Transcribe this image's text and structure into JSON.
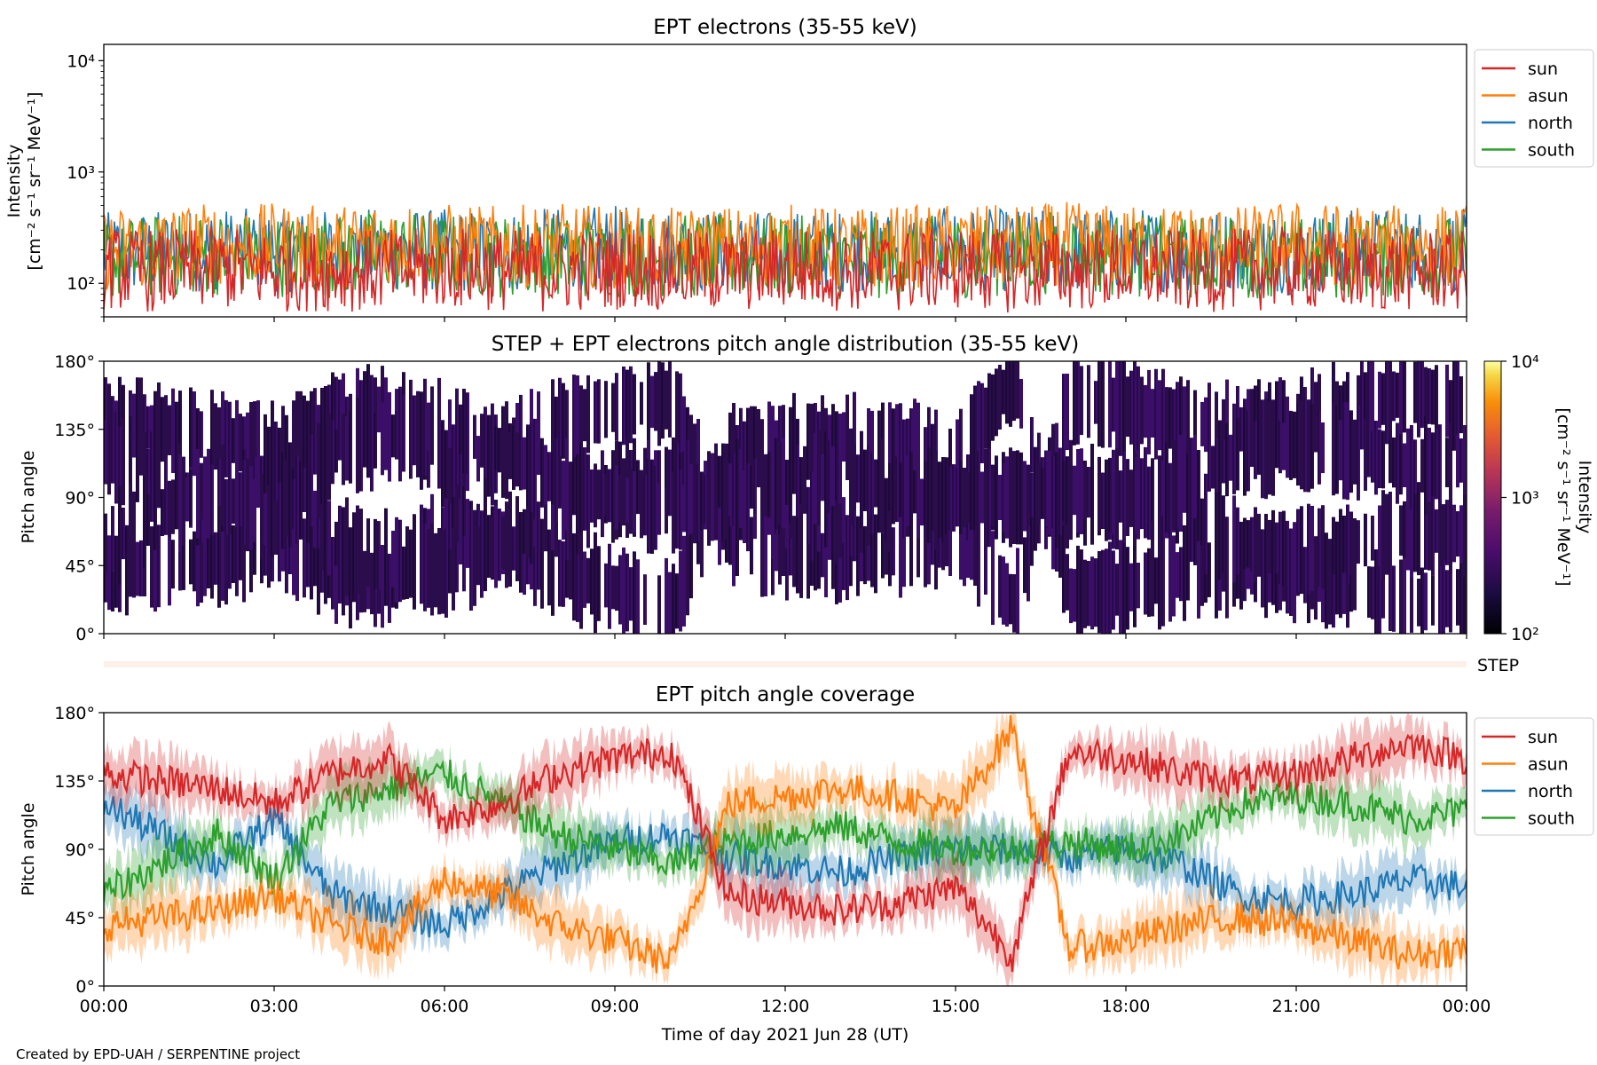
{
  "figure": {
    "credit": "Created by EPD-UAH / SERPENTINE project",
    "xlabel": "Time of day 2021 Jun 28 (UT)",
    "x_ticks": [
      "00:00",
      "03:00",
      "06:00",
      "09:00",
      "12:00",
      "15:00",
      "18:00",
      "21:00",
      "00:00"
    ]
  },
  "colors": {
    "sun": "#d62728",
    "asun": "#ff7f0e",
    "north": "#1f77b4",
    "south": "#2ca02c"
  },
  "chart_data": [
    {
      "type": "line",
      "title": "EPT electrons (35-55 keV)",
      "ylabel": "Intensity",
      "yunit": "[cm⁻² s⁻¹ sr⁻¹ MeV⁻¹]",
      "yscale": "log",
      "ylim": [
        50,
        14000
      ],
      "y_ticks": [
        "10²",
        "10³",
        "10⁴"
      ],
      "x_hours_range": [
        0,
        24
      ],
      "legend_location": "upper-right outside",
      "series": [
        {
          "name": "sun",
          "x_hours": [
            0,
            1,
            2,
            3,
            4,
            5,
            6,
            7,
            8,
            9,
            10,
            11,
            12,
            13,
            14,
            15,
            16,
            17,
            18,
            19,
            20,
            21,
            22,
            23,
            24
          ],
          "values": [
            150,
            140,
            150,
            140,
            145,
            140,
            150,
            145,
            140,
            150,
            145,
            140,
            150,
            145,
            140,
            150,
            140,
            145,
            150,
            140,
            145,
            150,
            140,
            145,
            140
          ]
        },
        {
          "name": "asun",
          "x_hours": [
            0,
            1,
            2,
            3,
            4,
            5,
            6,
            7,
            8,
            9,
            10,
            11,
            12,
            13,
            14,
            15,
            16,
            17,
            18,
            19,
            20,
            21,
            22,
            23,
            24
          ],
          "values": [
            220,
            230,
            250,
            240,
            230,
            260,
            240,
            230,
            240,
            230,
            220,
            230,
            240,
            220,
            230,
            240,
            230,
            250,
            230,
            240,
            230,
            250,
            240,
            230,
            240
          ]
        },
        {
          "name": "north",
          "x_hours": [
            0,
            1,
            2,
            3,
            4,
            5,
            6,
            7,
            8,
            9,
            10,
            11,
            12,
            13,
            14,
            15,
            16,
            17,
            18,
            19,
            20,
            21,
            22,
            23,
            24
          ],
          "values": [
            200,
            210,
            220,
            215,
            210,
            220,
            215,
            210,
            220,
            230,
            215,
            210,
            205,
            215,
            210,
            220,
            215,
            210,
            220,
            215,
            210,
            205,
            215,
            220,
            215
          ]
        },
        {
          "name": "south",
          "x_hours": [
            0,
            1,
            2,
            3,
            4,
            5,
            6,
            7,
            8,
            9,
            10,
            11,
            12,
            13,
            14,
            15,
            16,
            17,
            18,
            19,
            20,
            21,
            22,
            23,
            24
          ],
          "values": [
            180,
            190,
            200,
            195,
            190,
            210,
            195,
            190,
            185,
            190,
            195,
            185,
            190,
            180,
            185,
            190,
            200,
            210,
            195,
            185,
            190,
            185,
            180,
            190,
            185
          ]
        }
      ]
    },
    {
      "type": "heatmap",
      "title": "STEP + EPT electrons pitch angle distribution (35-55 keV)",
      "ylabel": "Pitch angle",
      "ylim": [
        0,
        180
      ],
      "y_ticks": [
        "0°",
        "45°",
        "90°",
        "135°",
        "180°"
      ],
      "colorbar": {
        "label": "Intensity",
        "unit": "[cm⁻² s⁻¹ sr⁻¹ MeV⁻¹]",
        "scale": "log",
        "range": [
          100,
          10000
        ],
        "ticks": [
          "10²",
          "10³",
          "10⁴"
        ],
        "colormap": "inferno"
      },
      "typical_intensity": 220
    },
    {
      "type": "bar",
      "label": "STEP",
      "color": "#fdf0e8"
    },
    {
      "type": "area",
      "title": "EPT pitch angle coverage",
      "ylabel": "Pitch angle",
      "ylim": [
        0,
        180
      ],
      "y_ticks": [
        "0°",
        "45°",
        "90°",
        "135°",
        "180°"
      ],
      "x_hours_range": [
        0,
        24
      ],
      "legend_location": "upper-right outside",
      "series": [
        {
          "name": "sun",
          "x_hours": [
            0,
            1,
            2,
            3,
            4,
            5,
            6,
            7,
            8,
            9,
            10,
            11,
            12,
            13,
            14,
            15,
            16,
            17,
            18,
            19,
            20,
            21,
            22,
            23,
            24
          ],
          "values": [
            140,
            135,
            130,
            120,
            140,
            150,
            110,
            120,
            140,
            150,
            155,
            60,
            55,
            50,
            55,
            65,
            20,
            155,
            150,
            140,
            135,
            140,
            150,
            160,
            150
          ]
        },
        {
          "name": "asun",
          "x_hours": [
            0,
            1,
            2,
            3,
            4,
            5,
            6,
            7,
            8,
            9,
            10,
            11,
            12,
            13,
            14,
            15,
            16,
            17,
            18,
            19,
            20,
            21,
            22,
            23,
            24
          ],
          "values": [
            40,
            45,
            50,
            60,
            40,
            30,
            70,
            60,
            40,
            30,
            15,
            120,
            125,
            130,
            125,
            115,
            170,
            25,
            30,
            40,
            45,
            40,
            30,
            20,
            25
          ]
        },
        {
          "name": "north",
          "x_hours": [
            0,
            1,
            2,
            3,
            4,
            5,
            6,
            7,
            8,
            9,
            10,
            11,
            12,
            13,
            14,
            15,
            16,
            17,
            18,
            19,
            20,
            21,
            22,
            23,
            24
          ],
          "values": [
            120,
            100,
            80,
            110,
            60,
            50,
            40,
            60,
            80,
            95,
            100,
            85,
            80,
            75,
            85,
            90,
            90,
            85,
            90,
            80,
            60,
            55,
            60,
            70,
            65
          ]
        },
        {
          "name": "south",
          "x_hours": [
            0,
            1,
            2,
            3,
            4,
            5,
            6,
            7,
            8,
            9,
            10,
            11,
            12,
            13,
            14,
            15,
            16,
            17,
            18,
            19,
            20,
            21,
            22,
            23,
            24
          ],
          "values": [
            60,
            80,
            100,
            70,
            120,
            130,
            140,
            120,
            100,
            90,
            80,
            95,
            100,
            105,
            95,
            90,
            90,
            95,
            90,
            100,
            120,
            125,
            120,
            110,
            115
          ]
        }
      ]
    }
  ]
}
